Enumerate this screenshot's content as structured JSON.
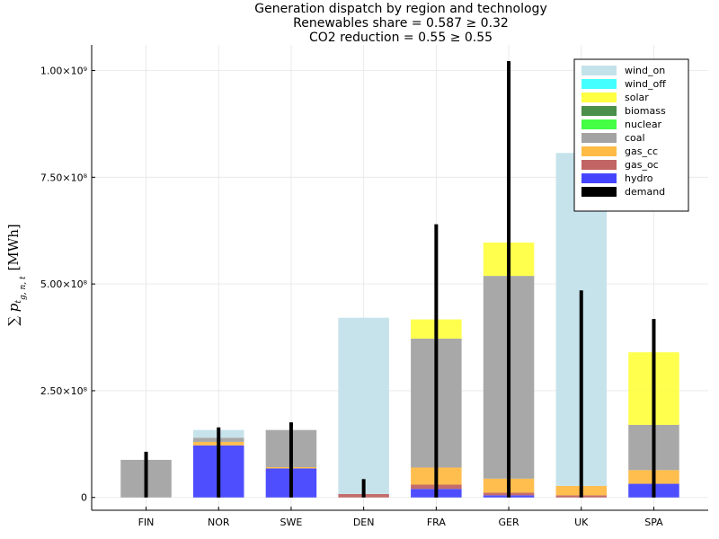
{
  "chart_data": {
    "type": "bar",
    "stacked": true,
    "title": [
      "Generation dispatch by region and technology",
      "Renewables share = 0.587 ≥ 0.32",
      "CO2 reduction = 0.55 ≥ 0.55"
    ],
    "ylabel": "∑ p",
    "ylabel_sub": "t",
    "ylabel_sup": "g, n, t",
    "ylabel_unit": "[MWh]",
    "ylim": [
      -30000000,
      1060000000
    ],
    "yticks": [
      0,
      250000000,
      500000000,
      750000000,
      1000000000
    ],
    "ytick_labels": [
      "0",
      "2.50×10⁸",
      "5.00×10⁸",
      "7.50×10⁸",
      "1.00×10⁹"
    ],
    "grid": true,
    "legend_position": "top-right",
    "categories": [
      "FIN",
      "NOR",
      "SWE",
      "DEN",
      "FRA",
      "GER",
      "UK",
      "SPA"
    ],
    "series": [
      {
        "name": "hydro",
        "color": "#4444ff",
        "values": [
          0,
          122000000,
          68000000,
          0,
          20000000,
          5000000,
          0,
          32000000
        ]
      },
      {
        "name": "gas_oc",
        "color": "#c06464",
        "values": [
          0,
          0,
          0,
          8000000,
          10000000,
          6000000,
          5000000,
          0
        ]
      },
      {
        "name": "gas_cc",
        "color": "#ffbb44",
        "values": [
          0,
          8000000,
          3000000,
          0,
          40000000,
          33000000,
          22000000,
          32000000
        ]
      },
      {
        "name": "coal",
        "color": "#a3a3a3",
        "values": [
          88000000,
          10000000,
          87000000,
          0,
          302000000,
          475000000,
          0,
          106000000
        ]
      },
      {
        "name": "nuclear",
        "color": "#44ff44",
        "values": [
          0,
          0,
          0,
          0,
          0,
          0,
          0,
          0
        ]
      },
      {
        "name": "biomass",
        "color": "#4a8f4a",
        "values": [
          0,
          0,
          0,
          0,
          0,
          0,
          0,
          0
        ]
      },
      {
        "name": "solar",
        "color": "#ffff44",
        "values": [
          0,
          0,
          0,
          0,
          45000000,
          78000000,
          0,
          170000000
        ]
      },
      {
        "name": "wind_off",
        "color": "#44ffff",
        "values": [
          0,
          0,
          0,
          0,
          0,
          0,
          0,
          0
        ]
      },
      {
        "name": "wind_on",
        "color": "#c3e2ea",
        "values": [
          0,
          18000000,
          0,
          413000000,
          0,
          0,
          780000000,
          0
        ]
      }
    ],
    "legend_order": [
      "wind_on",
      "wind_off",
      "solar",
      "biomass",
      "nuclear",
      "coal",
      "gas_cc",
      "gas_oc",
      "hydro",
      "demand"
    ],
    "demand": {
      "name": "demand",
      "color": "#000000",
      "values": [
        107000000,
        164000000,
        176000000,
        43000000,
        640000000,
        1022000000,
        485000000,
        418000000
      ]
    }
  }
}
